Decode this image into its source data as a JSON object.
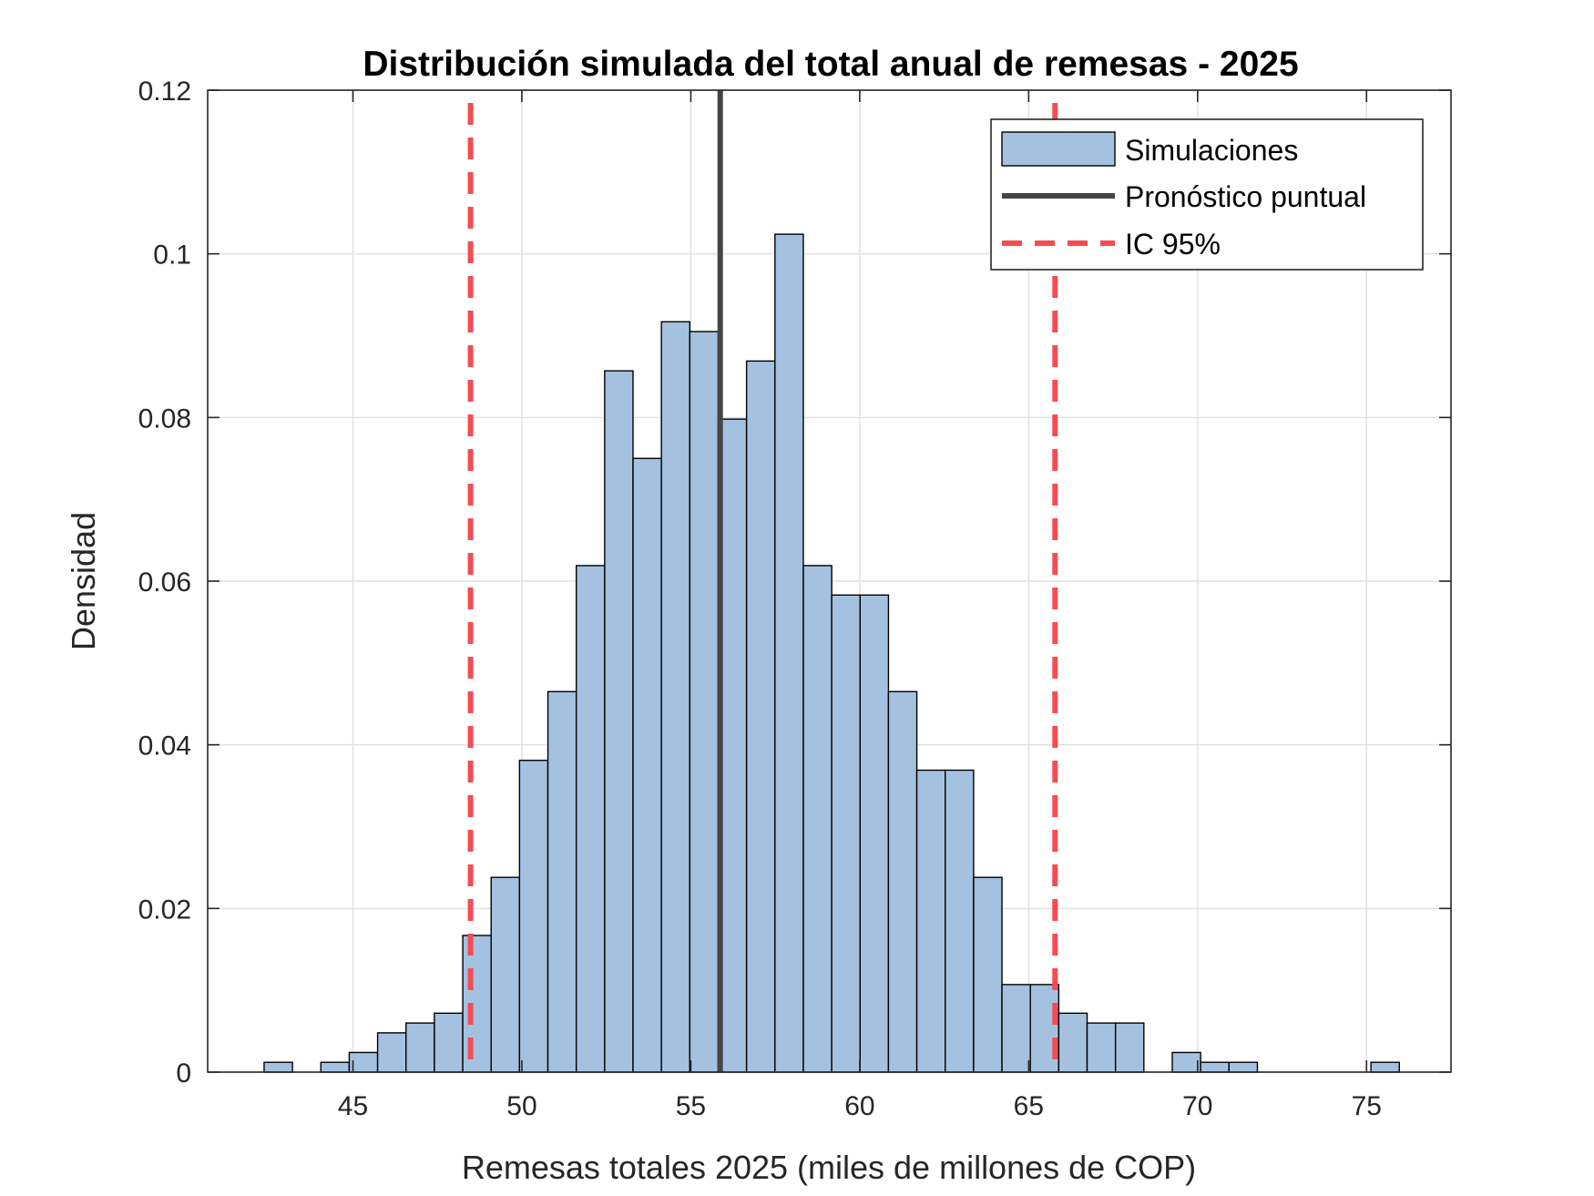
{
  "colors": {
    "bar_fill": "#a5c1e0",
    "bar_edge": "#000000",
    "point_line": "#454545",
    "ci_line": "#f74b52",
    "grid": "#e2e2e2",
    "axis": "#262626"
  },
  "chart_data": {
    "type": "bar",
    "title": "Distribución simulada del total anual de remesas - 2025",
    "xlabel": "Remesas totales 2025 (miles de millones de COP)",
    "ylabel": "Densidad",
    "xlim": [
      40.7,
      77.5
    ],
    "ylim": [
      0,
      0.12
    ],
    "grid": true,
    "legend_position": "top-right",
    "x_ticks": [
      "45",
      "50",
      "55",
      "60",
      "65",
      "70",
      "75"
    ],
    "y_ticks": [
      "0",
      "0.02",
      "0.04",
      "0.06",
      "0.08",
      "0.1",
      "0.12"
    ],
    "bin_width": 0.84,
    "bin_left_edges": [
      42.37,
      43.21,
      44.05,
      44.89,
      45.73,
      46.57,
      47.41,
      48.25,
      49.09,
      49.93,
      50.77,
      51.61,
      52.45,
      53.29,
      54.13,
      54.97,
      55.81,
      56.65,
      57.49,
      58.33,
      59.17,
      60.01,
      60.85,
      61.69,
      62.53,
      63.37,
      64.21,
      65.05,
      65.89,
      66.73,
      67.57,
      68.41,
      69.25,
      70.09,
      70.93,
      71.77,
      72.61,
      73.45,
      74.29,
      75.13
    ],
    "densities": [
      0.0012,
      0.0,
      0.0012,
      0.0024,
      0.0048,
      0.006,
      0.0072,
      0.0167,
      0.0238,
      0.0381,
      0.0465,
      0.0619,
      0.0857,
      0.075,
      0.0917,
      0.0905,
      0.0798,
      0.0869,
      0.1024,
      0.0619,
      0.0583,
      0.0583,
      0.0465,
      0.0369,
      0.0369,
      0.0238,
      0.0107,
      0.0107,
      0.0072,
      0.006,
      0.006,
      0.0,
      0.0024,
      0.0012,
      0.0012,
      0.0,
      0.0,
      0.0,
      0.0,
      0.0012
    ],
    "point_forecast": 55.87,
    "ci_95": [
      48.48,
      65.78
    ],
    "series": [
      {
        "name": "Simulaciones"
      },
      {
        "name": "Pronóstico puntual"
      },
      {
        "name": "IC 95%"
      }
    ]
  }
}
